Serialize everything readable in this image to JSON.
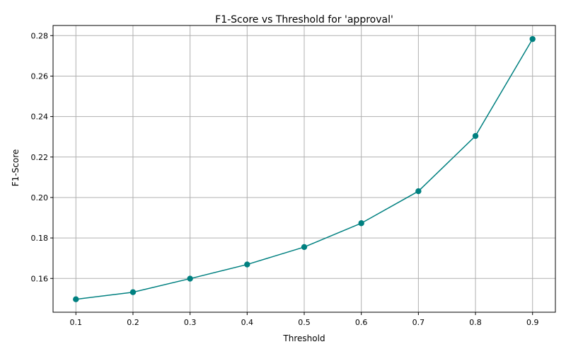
{
  "chart_data": {
    "type": "line",
    "title": "F1-Score vs Threshold for 'approval'",
    "xlabel": "Threshold",
    "ylabel": "F1-Score",
    "x": [
      0.1,
      0.2,
      0.3,
      0.4,
      0.5,
      0.6,
      0.7,
      0.8,
      0.9
    ],
    "series": [
      {
        "values": [
          0.1497,
          0.1532,
          0.1599,
          0.1669,
          0.1755,
          0.1873,
          0.2031,
          0.2304,
          0.2783
        ]
      }
    ],
    "xlim": [
      0.06,
      0.94
    ],
    "ylim": [
      0.1433,
      0.285
    ],
    "xticks": [
      0.1,
      0.2,
      0.3,
      0.4,
      0.5,
      0.6,
      0.7,
      0.8,
      0.9
    ],
    "xtick_labels": [
      "0.1",
      "0.2",
      "0.3",
      "0.4",
      "0.5",
      "0.6",
      "0.7",
      "0.8",
      "0.9"
    ],
    "yticks": [
      0.16,
      0.18,
      0.2,
      0.22,
      0.24,
      0.26,
      0.28
    ],
    "ytick_labels": [
      "0.16",
      "0.18",
      "0.20",
      "0.22",
      "0.24",
      "0.26",
      "0.28"
    ],
    "grid": true,
    "legend": "none",
    "color": "#008080"
  }
}
